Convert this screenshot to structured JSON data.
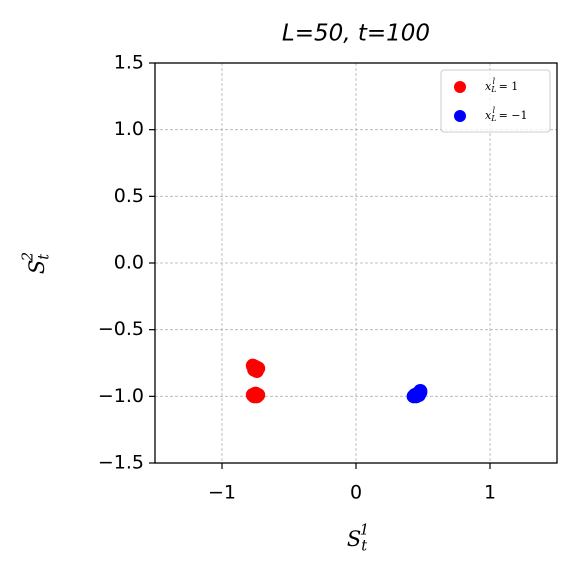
{
  "chart_data": {
    "type": "scatter",
    "title": "L=50, t=100",
    "xlabel": {
      "base": "S",
      "sub": "t",
      "sup": "1"
    },
    "ylabel": {
      "base": "S",
      "sub": "t",
      "sup": "2"
    },
    "xlim": [
      -1.5,
      1.5
    ],
    "ylim": [
      -1.5,
      1.5
    ],
    "xticks": [
      {
        "value": -1,
        "label": "−1"
      },
      0,
      1
    ],
    "yticks": [
      1.5,
      {
        "value": 1.0,
        "label": "1.0"
      },
      0.5,
      {
        "value": 0.0,
        "label": "0.0"
      },
      {
        "value": -0.5,
        "label": "−0.5"
      },
      {
        "value": -1.0,
        "label": "−1.0"
      },
      {
        "value": -1.5,
        "label": "−1.5"
      }
    ],
    "grid": true,
    "legend": "upper right",
    "series": [
      {
        "name": {
          "base": "x",
          "sub": "L",
          "sup": "l",
          "rest": " = 1"
        },
        "color": "#ff0000",
        "x": [
          -0.77,
          -0.75,
          -0.76,
          -0.74,
          -0.73,
          -0.77,
          -0.75,
          -0.73,
          -0.76,
          -0.74
        ],
        "values": [
          -0.77,
          -0.78,
          -0.8,
          -0.81,
          -0.79,
          -0.99,
          -0.98,
          -0.99,
          -1.0,
          -1.0
        ]
      },
      {
        "name": {
          "base": "x",
          "sub": "L",
          "sup": "l",
          "rest": " = −1"
        },
        "color": "#0000ff",
        "x": [
          0.44,
          0.46,
          0.48,
          0.45,
          0.47,
          0.43,
          0.48
        ],
        "values": [
          -0.99,
          -0.98,
          -0.97,
          -1.0,
          -0.99,
          -1.0,
          -0.96
        ]
      }
    ]
  }
}
